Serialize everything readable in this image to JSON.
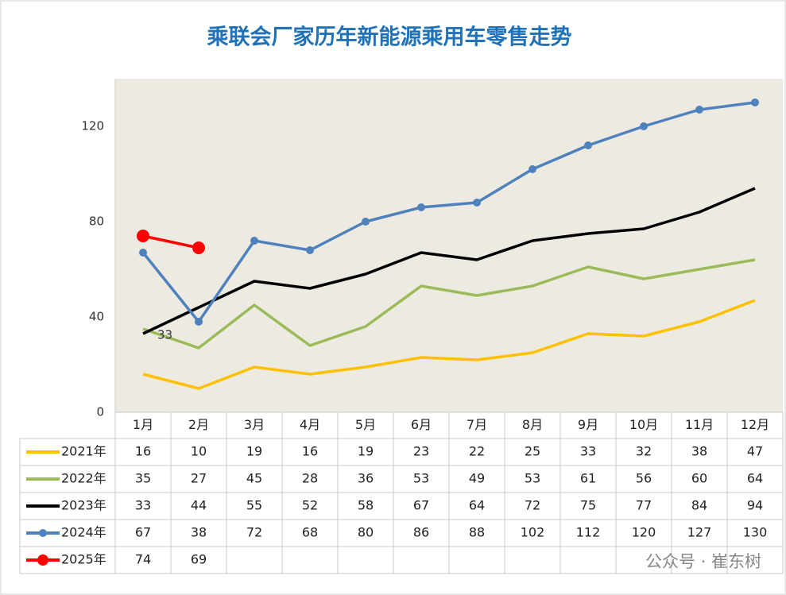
{
  "chart_data": {
    "type": "line",
    "title": "乘联会厂家历年新能源乘用车零售走势",
    "categories": [
      "1月",
      "2月",
      "3月",
      "4月",
      "5月",
      "6月",
      "7月",
      "8月",
      "9月",
      "10月",
      "11月",
      "12月"
    ],
    "series": [
      {
        "name": "2021年",
        "color": "#ffc000",
        "marker": false,
        "values": [
          16,
          10,
          19,
          16,
          19,
          23,
          22,
          25,
          33,
          32,
          38,
          47
        ]
      },
      {
        "name": "2022年",
        "color": "#9bbb59",
        "marker": false,
        "values": [
          35,
          27,
          45,
          28,
          36,
          53,
          49,
          53,
          61,
          56,
          60,
          64
        ]
      },
      {
        "name": "2023年",
        "color": "#000000",
        "marker": false,
        "values": [
          33,
          44,
          55,
          52,
          58,
          67,
          64,
          72,
          75,
          77,
          84,
          94
        ]
      },
      {
        "name": "2024年",
        "color": "#4f81bd",
        "marker": true,
        "values": [
          67,
          38,
          72,
          68,
          80,
          86,
          88,
          102,
          112,
          120,
          127,
          130
        ]
      },
      {
        "name": "2025年",
        "color": "#ff0000",
        "marker": true,
        "values": [
          74,
          69,
          null,
          null,
          null,
          null,
          null,
          null,
          null,
          null,
          null,
          null
        ]
      }
    ],
    "annotation": "33",
    "ylim": [
      0,
      140
    ],
    "yticks": [
      0,
      40,
      80,
      120
    ],
    "background": "#edebe1",
    "watermark": "公众号 · 崔东树"
  }
}
